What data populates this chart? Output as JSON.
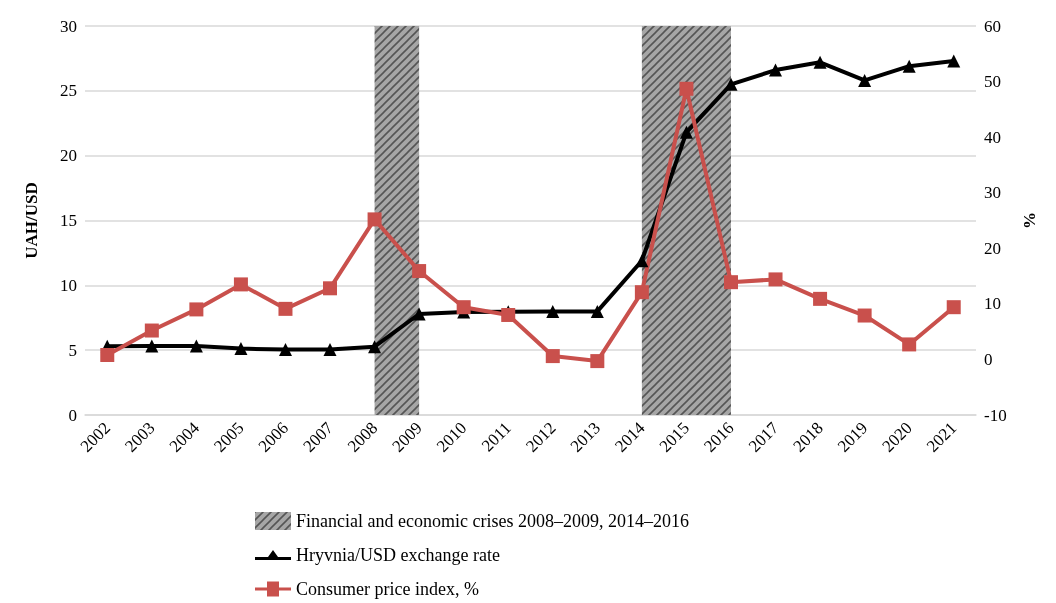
{
  "chart_data": {
    "type": "line",
    "categories": [
      "2002",
      "2003",
      "2004",
      "2005",
      "2006",
      "2007",
      "2008",
      "2009",
      "2010",
      "2011",
      "2012",
      "2013",
      "2014",
      "2015",
      "2016",
      "2017",
      "2018",
      "2019",
      "2020",
      "2021"
    ],
    "ylabel": "UAH/USD",
    "y2label": "%",
    "ylim": [
      0,
      30
    ],
    "yticks": [
      0,
      5,
      10,
      15,
      20,
      25,
      30
    ],
    "y2lim": [
      -10,
      60
    ],
    "y2ticks": [
      -10,
      0,
      10,
      20,
      30,
      40,
      50,
      60
    ],
    "grid": "y",
    "legend": "bottom",
    "bands": [
      {
        "axis": "x",
        "from": "2008",
        "to": "2009",
        "label": "Financial and economic crises 2008–2009, 2014–2016",
        "color": "#a6a6a6"
      },
      {
        "axis": "x",
        "from": "2014",
        "to": "2016",
        "color": "#a6a6a6"
      }
    ],
    "series": [
      {
        "name": "Hryvnia/USD exchange rate",
        "color": "#000000",
        "marker": "triangle",
        "values": [
          5.3,
          5.33,
          5.32,
          5.12,
          5.05,
          5.05,
          5.27,
          7.79,
          7.94,
          7.97,
          7.99,
          7.99,
          11.9,
          21.8,
          25.5,
          26.6,
          27.2,
          25.8,
          26.9,
          27.3
        ]
      },
      {
        "name": "Consumer price index, %",
        "color": "#c9504c",
        "marker": "square",
        "axis": "y2",
        "values": [
          0.8,
          5.2,
          9.0,
          13.5,
          9.1,
          12.8,
          25.2,
          15.9,
          9.4,
          8.0,
          0.6,
          -0.3,
          12.1,
          48.7,
          13.9,
          14.4,
          10.9,
          7.9,
          2.7,
          9.4
        ]
      }
    ]
  }
}
